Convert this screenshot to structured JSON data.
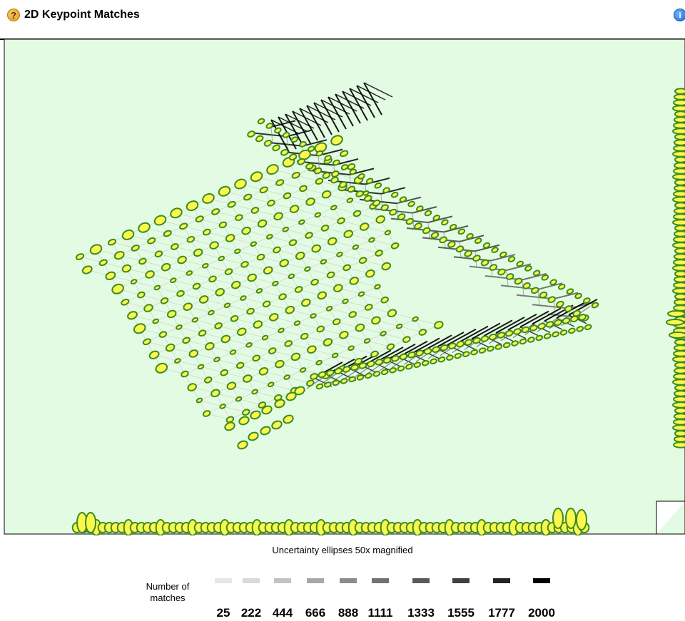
{
  "header": {
    "title": "2D Keypoint Matches",
    "help_icon": "?",
    "info_icon": "i"
  },
  "plot": {
    "background": "#e3fbe3",
    "ellipse_fill": "#fbf74e",
    "ellipse_stroke": "#3c8b1f"
  },
  "legend": {
    "caption": "Uncertainty ellipses 50x magnified",
    "label": "Number of matches",
    "values": [
      "25",
      "222",
      "444",
      "666",
      "888",
      "1111",
      "1333",
      "1555",
      "1777",
      "2000"
    ],
    "colors": [
      "#e6e6e6",
      "#d9d9d9",
      "#c2c2c2",
      "#a7a7a7",
      "#8c8c8c",
      "#727272",
      "#5a5a5a",
      "#404040",
      "#242424",
      "#000000"
    ]
  }
}
